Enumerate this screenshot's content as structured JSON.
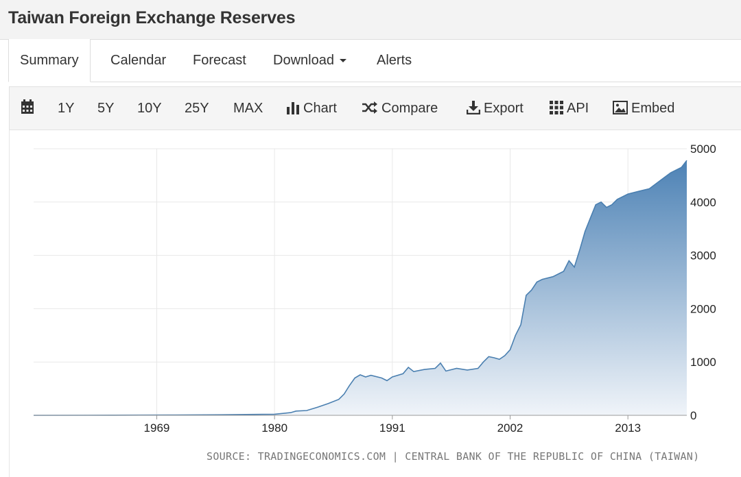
{
  "page": {
    "title": "Taiwan Foreign Exchange Reserves"
  },
  "tabs": [
    {
      "label": "Summary",
      "active": true
    },
    {
      "label": "Calendar"
    },
    {
      "label": "Forecast"
    },
    {
      "label": "Download",
      "dropdown": true
    },
    {
      "label": "Alerts"
    }
  ],
  "toolbar": {
    "calendar_icon": "calendar-icon",
    "ranges": [
      "1Y",
      "5Y",
      "10Y",
      "25Y",
      "MAX"
    ],
    "chart_label": "Chart",
    "compare_label": "Compare",
    "export_label": "Export",
    "api_label": "API",
    "embed_label": "Embed"
  },
  "chart_data": {
    "type": "area",
    "title": "",
    "xlabel": "",
    "ylabel": "",
    "xlim": [
      1957.5,
      2018.5
    ],
    "ylim": [
      0,
      5000
    ],
    "x_ticks": [
      1969,
      1980,
      1991,
      2002,
      2013
    ],
    "y_ticks": [
      0,
      1000,
      2000,
      3000,
      4000,
      5000
    ],
    "y_axis_position": "right",
    "grid": true,
    "legend": "none",
    "colors": {
      "line": "#4a7fb0",
      "fill_top": "#4d82b5",
      "fill_bottom": "#f0f4f9"
    },
    "series": [
      {
        "x": [
          1957.5,
          1965,
          1970,
          1975,
          1980,
          1981.5,
          1982,
          1983,
          1984,
          1985,
          1986,
          1986.5,
          1987,
          1987.5,
          1988,
          1988.5,
          1989,
          1990,
          1990.5,
          1991,
          1992,
          1992.5,
          1993,
          1994,
          1995,
          1995.5,
          1996,
          1997,
          1998,
          1999,
          1999.5,
          2000,
          2000.5,
          2001,
          2001.5,
          2002,
          2002.5,
          2003,
          2003.5,
          2004,
          2004.5,
          2005,
          2006,
          2007,
          2007.5,
          2008,
          2008.5,
          2009,
          2009.5,
          2010,
          2010.5,
          2011,
          2011.5,
          2012,
          2013,
          2014,
          2015,
          2016,
          2017,
          2018,
          2018.5
        ],
        "y": [
          0,
          2,
          5,
          10,
          20,
          50,
          80,
          90,
          150,
          220,
          300,
          400,
          560,
          700,
          760,
          720,
          750,
          700,
          650,
          720,
          780,
          900,
          820,
          860,
          880,
          980,
          830,
          880,
          850,
          880,
          1000,
          1100,
          1080,
          1050,
          1120,
          1230,
          1500,
          1700,
          2250,
          2350,
          2500,
          2550,
          2600,
          2700,
          2900,
          2780,
          3100,
          3450,
          3700,
          3950,
          4000,
          3900,
          3950,
          4050,
          4150,
          4200,
          4250,
          4400,
          4550,
          4650,
          4780
        ]
      }
    ]
  },
  "source": {
    "text": "SOURCE: TRADINGECONOMICS.COM | CENTRAL BANK OF THE REPUBLIC OF CHINA (TAIWAN)"
  }
}
